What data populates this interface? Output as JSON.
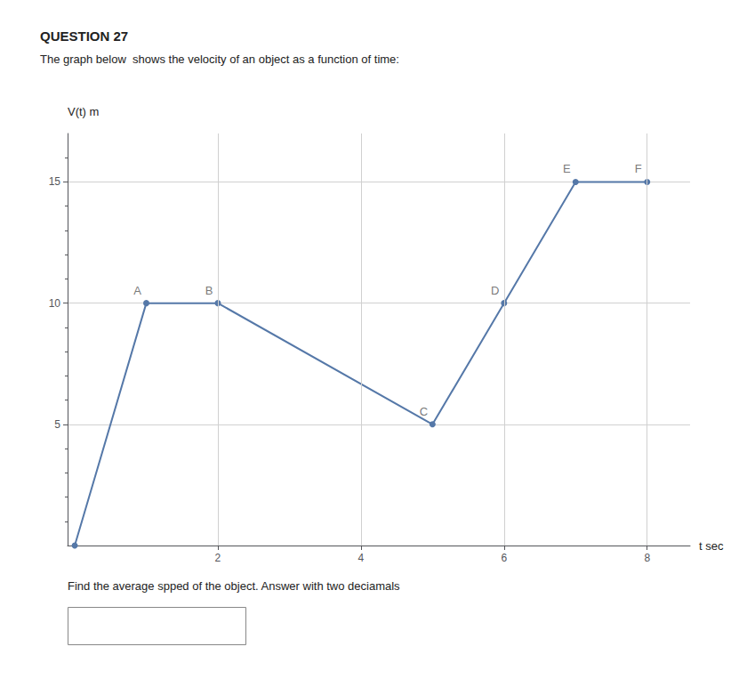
{
  "chart_data": {
    "type": "line",
    "title": "QUESTION 27",
    "subtitle": "The graph below  shows the velocity of an object as a function of time:",
    "footer": "Find the average spped of the object. Answer with two deciamals",
    "xlabel": "t sec",
    "ylabel": "V(t) m",
    "x": [
      0,
      1,
      2,
      5,
      6,
      7,
      8
    ],
    "values": [
      0,
      10,
      10,
      5,
      10,
      15,
      15
    ],
    "color": "#5578a8",
    "marker": "circle",
    "annotations": [
      {
        "text": "A",
        "x": 1,
        "y": 10
      },
      {
        "text": "B",
        "x": 2,
        "y": 10
      },
      {
        "text": "C",
        "x": 5,
        "y": 5
      },
      {
        "text": "D",
        "x": 6,
        "y": 10
      },
      {
        "text": "E",
        "x": 7,
        "y": 15
      },
      {
        "text": "F",
        "x": 8,
        "y": 15
      }
    ],
    "xlim": [
      -0.1,
      8.6
    ],
    "ylim": [
      0,
      17
    ],
    "xticks": [
      2,
      4,
      6,
      8
    ],
    "yticks": [
      5,
      10,
      15
    ],
    "grid": true
  }
}
